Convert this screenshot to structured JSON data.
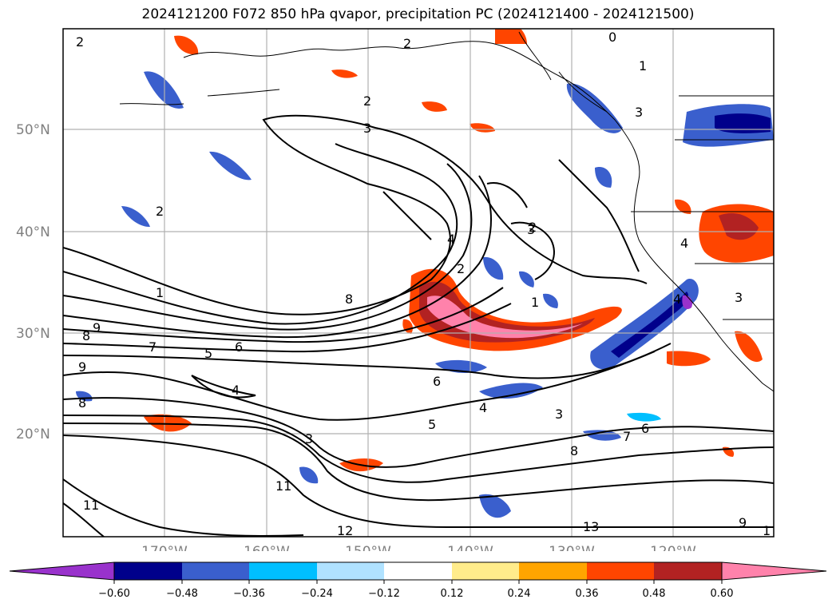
{
  "title": "2024121200 F072 850 hPa qvapor, precipitation PC (2024121400 - 2024121500)",
  "lat_labels": [
    "50°N",
    "40°N",
    "30°N",
    "20°N"
  ],
  "lon_labels": [
    "170°W",
    "160°W",
    "150°W",
    "140°W",
    "130°W",
    "120°W"
  ],
  "contour_labels": [
    "2",
    "2",
    "0",
    "1",
    "2",
    "3",
    "3",
    "2",
    "2",
    "4",
    "2",
    "3",
    "4",
    "1",
    "1",
    "8",
    "9",
    "8",
    "7",
    "5",
    "6",
    "9",
    "8",
    "4",
    "6",
    "4",
    "5",
    "3",
    "7",
    "6",
    "8",
    "11",
    "11",
    "12",
    "13",
    "9",
    "1",
    "3",
    "4",
    "3"
  ],
  "colorbar": {
    "tick_labels": [
      "−0.60",
      "−0.48",
      "−0.36",
      "−0.24",
      "−0.12",
      "0.12",
      "0.24",
      "0.36",
      "0.48",
      "0.60"
    ],
    "colors": [
      "#9932cc",
      "#00008b",
      "#3a5fcd",
      "#00bfff",
      "#b0e2ff",
      "#ffffff",
      "#ffec8b",
      "#ffa500",
      "#ff4500",
      "#b22222",
      "#ff82ab"
    ]
  }
}
